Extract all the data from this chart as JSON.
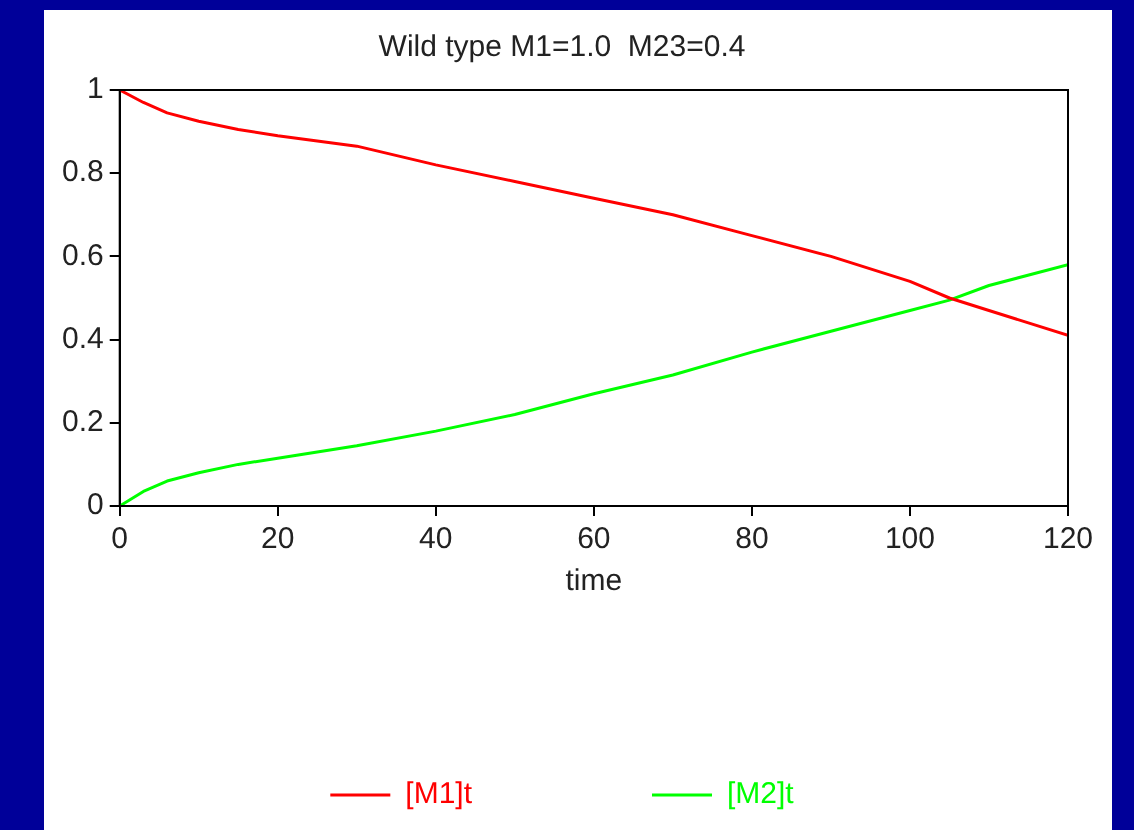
{
  "chart_data": {
    "type": "line",
    "title": "Wild type M1=1.0  M23=0.4",
    "xlabel": "time",
    "xlim": [
      0,
      120
    ],
    "xticks": [
      0,
      20,
      40,
      60,
      80,
      100,
      120
    ],
    "ylim": [
      0,
      1
    ],
    "yticks": [
      0,
      0.2,
      0.4,
      0.6,
      0.8,
      1
    ],
    "grid": false,
    "legend": "bottom",
    "marker": "none",
    "line_style": "solid",
    "series": [
      {
        "name": "[M1]t",
        "color": "#ff0000",
        "x": [
          0,
          3,
          6,
          10,
          15,
          20,
          30,
          40,
          50,
          60,
          70,
          80,
          90,
          100,
          105,
          110,
          120
        ],
        "values": [
          1.0,
          0.97,
          0.945,
          0.925,
          0.905,
          0.89,
          0.865,
          0.82,
          0.78,
          0.74,
          0.7,
          0.65,
          0.6,
          0.54,
          0.5,
          0.47,
          0.41
        ]
      },
      {
        "name": "[M2]t",
        "color": "#00ff00",
        "x": [
          0,
          3,
          6,
          10,
          15,
          20,
          30,
          40,
          50,
          60,
          70,
          80,
          90,
          100,
          105,
          110,
          120
        ],
        "values": [
          0,
          0.035,
          0.06,
          0.08,
          0.1,
          0.115,
          0.145,
          0.18,
          0.22,
          0.27,
          0.315,
          0.37,
          0.42,
          0.47,
          0.495,
          0.53,
          0.58
        ]
      }
    ]
  }
}
